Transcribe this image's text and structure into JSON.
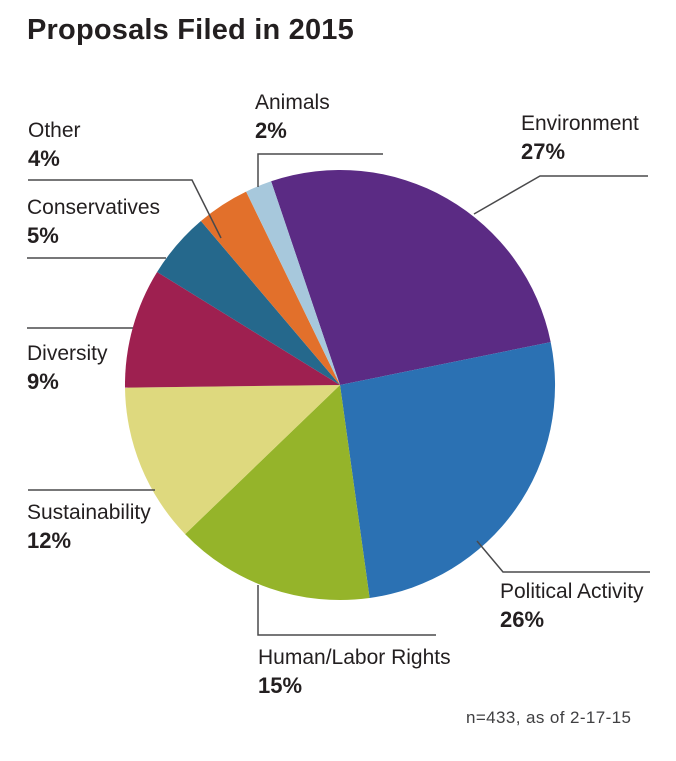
{
  "chart_data": {
    "type": "pie",
    "title": "Proposals Filed in 2015",
    "footnote": "n=433, as of 2-17-15",
    "start_angle_deg": -18.7,
    "direction": "clockwise",
    "legend_position": "callout-labels",
    "slices": [
      {
        "label": "Environment",
        "value": 27,
        "pct_label": "27%",
        "color": "#5b2b84"
      },
      {
        "label": "Political Activity",
        "value": 26,
        "pct_label": "26%",
        "color": "#2b71b3"
      },
      {
        "label": "Human/Labor Rights",
        "value": 15,
        "pct_label": "15%",
        "color": "#95b42a"
      },
      {
        "label": "Sustainability",
        "value": 12,
        "pct_label": "12%",
        "color": "#ded97e"
      },
      {
        "label": "Diversity",
        "value": 9,
        "pct_label": "9%",
        "color": "#9e2050"
      },
      {
        "label": "Conservatives",
        "value": 5,
        "pct_label": "5%",
        "color": "#25688c"
      },
      {
        "label": "Other",
        "value": 4,
        "pct_label": "4%",
        "color": "#e2702b"
      },
      {
        "label": "Animals",
        "value": 2,
        "pct_label": "2%",
        "color": "#a7c8dc"
      }
    ],
    "colors": {
      "title_text": "#231f20",
      "label_text": "#231f20",
      "leader_line": "#4a4a4c",
      "background": "#ffffff"
    }
  }
}
